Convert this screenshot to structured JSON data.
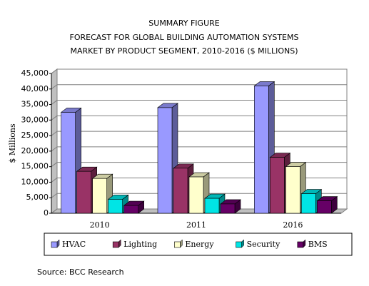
{
  "chart_data": {
    "type": "bar3d",
    "title": [
      "SUMMARY FIGURE",
      "FORECAST FOR GLOBAL BUILDING AUTOMATION SYSTEMS",
      "MARKET BY PRODUCT SEGMENT, 2010-2016 ($ MILLIONS)"
    ],
    "y_label": "$ Millions",
    "source": "Source: BCC Research",
    "categories": [
      "2010",
      "2011",
      "2016"
    ],
    "series": [
      {
        "name": "HVAC",
        "color": "#9999ff",
        "values": [
          32500,
          34000,
          41000
        ]
      },
      {
        "name": "Lighting",
        "color": "#993366",
        "values": [
          13500,
          14500,
          18000
        ]
      },
      {
        "name": "Energy",
        "color": "#ffffcc",
        "values": [
          11200,
          11700,
          15000
        ]
      },
      {
        "name": "Security",
        "color": "#00e5e5",
        "values": [
          4500,
          4800,
          6300
        ]
      },
      {
        "name": "BMS",
        "color": "#660066",
        "values": [
          2500,
          3000,
          4000
        ]
      }
    ],
    "ylim": [
      0,
      45000
    ],
    "yticks": [
      0,
      {
        "value": 5000,
        "label": "5,000"
      },
      {
        "value": 10000,
        "label": "10,000"
      },
      {
        "value": 15000,
        "label": "15,000"
      },
      {
        "value": 20000,
        "label": "20,000"
      },
      {
        "value": 25000,
        "label": "25,000"
      },
      {
        "value": 30000,
        "label": "30,000"
      },
      {
        "value": 35000,
        "label": "35,000"
      },
      {
        "value": 40000,
        "label": "40,000"
      },
      {
        "value": 45000,
        "label": "45,000"
      }
    ],
    "grid": true,
    "legend": "bottom"
  }
}
